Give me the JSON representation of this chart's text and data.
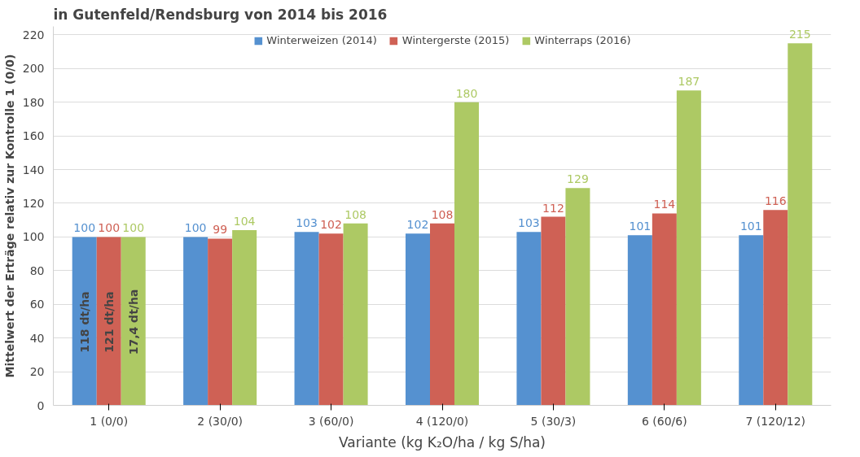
{
  "chart_data": {
    "type": "bar",
    "title": "in Gutenfeld/Rendsburg von 2014 bis 2016",
    "xlabel": "Variante (kg K₂O/ha / kg S/ha)",
    "ylabel": "Mittelwert der Erträge relativ zur Kontrolle 1 (0/0)",
    "categories": [
      "1 (0/0)",
      "2 (30/0)",
      "3 (60/0)",
      "4 (120/0)",
      "5 (30/3)",
      "6 (60/6)",
      "7 (120/12)"
    ],
    "series": [
      {
        "name": "Winterweizen (2014)",
        "color": "#5591d0",
        "values": [
          100,
          100,
          103,
          102,
          103,
          101,
          101
        ]
      },
      {
        "name": "Wintergerste (2015)",
        "color": "#cf6155",
        "values": [
          100,
          99,
          102,
          108,
          112,
          114,
          116
        ]
      },
      {
        "name": "Winterraps (2016)",
        "color": "#adc964",
        "values": [
          100,
          104,
          108,
          180,
          129,
          187,
          215
        ]
      }
    ],
    "annotations": [
      "118 dt/ha",
      "121 dt/ha",
      "17,4 dt/ha"
    ],
    "ylim": [
      0,
      225
    ],
    "yticks": [
      0,
      20,
      40,
      60,
      80,
      100,
      120,
      140,
      160,
      180,
      200,
      220
    ],
    "grid": "y",
    "legend": "top",
    "data_labels": true
  }
}
